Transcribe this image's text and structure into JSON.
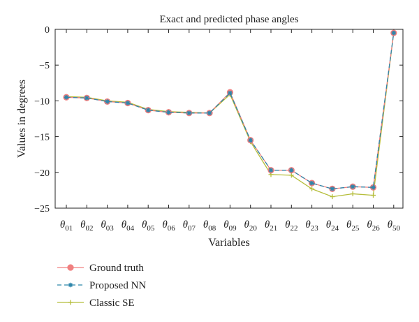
{
  "chart_data": {
    "type": "line",
    "title": "Exact and predicted phase angles",
    "xlabel": "Variables",
    "ylabel": "Values in degrees",
    "ylim": [
      -25,
      0
    ],
    "yticks": [
      0,
      -5,
      -10,
      -15,
      -20,
      -25
    ],
    "ytick_labels": [
      "0",
      "−5",
      "−10",
      "−15",
      "−20",
      "−25"
    ],
    "categories": [
      {
        "sym": "θ",
        "sub": "01"
      },
      {
        "sym": "θ",
        "sub": "02"
      },
      {
        "sym": "θ",
        "sub": "03"
      },
      {
        "sym": "θ",
        "sub": "04"
      },
      {
        "sym": "θ",
        "sub": "05"
      },
      {
        "sym": "θ",
        "sub": "06"
      },
      {
        "sym": "θ",
        "sub": "07"
      },
      {
        "sym": "θ",
        "sub": "08"
      },
      {
        "sym": "θ",
        "sub": "09"
      },
      {
        "sym": "θ",
        "sub": "20"
      },
      {
        "sym": "θ",
        "sub": "21"
      },
      {
        "sym": "θ",
        "sub": "22"
      },
      {
        "sym": "θ",
        "sub": "23"
      },
      {
        "sym": "θ",
        "sub": "24"
      },
      {
        "sym": "θ",
        "sub": "25"
      },
      {
        "sym": "θ",
        "sub": "26"
      },
      {
        "sym": "θ",
        "sub": "50"
      }
    ],
    "grid": false,
    "legend_position": "below",
    "series": [
      {
        "name": "Ground truth",
        "color": "#f08080",
        "marker": "circle",
        "line_style": "solid",
        "values": [
          -9.5,
          -9.6,
          -10.1,
          -10.3,
          -11.3,
          -11.6,
          -11.7,
          -11.7,
          -8.8,
          -15.5,
          -19.7,
          -19.7,
          -21.5,
          -22.3,
          -22.0,
          -22.1,
          -0.5
        ]
      },
      {
        "name": "Proposed NN",
        "color": "#2e86ab",
        "marker": "star",
        "line_style": "dashed",
        "values": [
          -9.5,
          -9.6,
          -10.1,
          -10.3,
          -11.3,
          -11.6,
          -11.7,
          -11.7,
          -8.9,
          -15.5,
          -19.7,
          -19.7,
          -21.5,
          -22.3,
          -22.0,
          -22.1,
          -0.5
        ]
      },
      {
        "name": "Classic SE",
        "color": "#b5bd3a",
        "marker": "plus",
        "line_style": "solid",
        "values": [
          -9.4,
          -9.5,
          -10.0,
          -10.2,
          -11.2,
          -11.5,
          -11.6,
          -11.7,
          -9.1,
          -15.7,
          -20.3,
          -20.4,
          -22.3,
          -23.4,
          -23.0,
          -23.2,
          -0.5
        ]
      }
    ]
  }
}
